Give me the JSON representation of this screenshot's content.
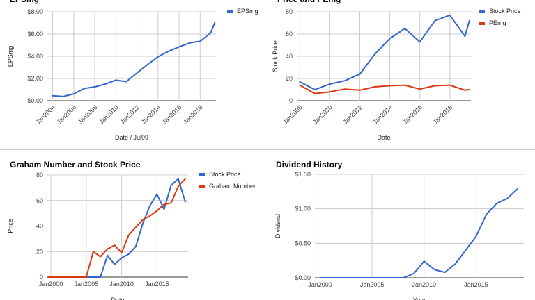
{
  "chart_data": [
    {
      "id": "eps",
      "type": "line",
      "title": "EPSmg",
      "xlabel": "Date / Jul99",
      "ylabel": "EPSmg",
      "x_ticks": [
        "Jan2004",
        "Jan2006",
        "Jan2008",
        "Jan2010",
        "Jan2012",
        "Jan2014",
        "Jan2016",
        "Jan2018"
      ],
      "y_ticks": [
        "$0.00",
        "$2.00",
        "$4.00",
        "$6.00",
        "$8.00"
      ],
      "x_range": [
        2003.5,
        2019.5
      ],
      "ylim": [
        0,
        8
      ],
      "grid": true,
      "legend_position": "right",
      "series": [
        {
          "name": "EPSmg",
          "color": "#3366cc",
          "points": [
            [
              2004,
              0.45
            ],
            [
              2005,
              0.38
            ],
            [
              2006,
              0.62
            ],
            [
              2007,
              1.1
            ],
            [
              2008,
              1.25
            ],
            [
              2009,
              1.5
            ],
            [
              2010,
              1.85
            ],
            [
              2011,
              1.72
            ],
            [
              2012,
              2.5
            ],
            [
              2013,
              3.25
            ],
            [
              2014,
              3.95
            ],
            [
              2015,
              4.45
            ],
            [
              2016,
              4.85
            ],
            [
              2017,
              5.2
            ],
            [
              2018,
              5.35
            ],
            [
              2019,
              6.1
            ],
            [
              2019.4,
              7.05
            ]
          ]
        }
      ]
    },
    {
      "id": "price-pe",
      "type": "line",
      "title": "Price and PEmg",
      "xlabel": "Date",
      "ylabel": "Stock Price",
      "x_ticks": [
        "Jan2008",
        "Jan2010",
        "Jan2012",
        "Jan2014",
        "Jan2016",
        "Jan2018"
      ],
      "y_ticks": [
        "0",
        "20",
        "40",
        "60",
        "80"
      ],
      "x_range": [
        2007.8,
        2019.4
      ],
      "ylim": [
        0,
        80
      ],
      "grid": true,
      "legend_position": "right",
      "series": [
        {
          "name": "Stock Price",
          "color": "#3366cc",
          "points": [
            [
              2008,
              17
            ],
            [
              2009,
              10
            ],
            [
              2010,
              15
            ],
            [
              2011,
              18
            ],
            [
              2012,
              24
            ],
            [
              2013,
              42
            ],
            [
              2014,
              56
            ],
            [
              2015,
              65
            ],
            [
              2016,
              53
            ],
            [
              2017,
              72
            ],
            [
              2018,
              77
            ],
            [
              2019,
              58
            ],
            [
              2019.3,
              72
            ]
          ]
        },
        {
          "name": "PEmg",
          "color": "#dc3912",
          "points": [
            [
              2008,
              14
            ],
            [
              2009,
              6.5
            ],
            [
              2010,
              8
            ],
            [
              2011,
              10.5
            ],
            [
              2012,
              9.5
            ],
            [
              2013,
              12.5
            ],
            [
              2014,
              13.5
            ],
            [
              2015,
              14
            ],
            [
              2016,
              10.5
            ],
            [
              2017,
              13.5
            ],
            [
              2018,
              14
            ],
            [
              2019,
              9.5
            ],
            [
              2019.3,
              10
            ]
          ]
        }
      ]
    },
    {
      "id": "graham",
      "type": "line",
      "title": "Graham Number and Stock Price",
      "xlabel": "Date",
      "ylabel": "Price",
      "x_ticks": [
        "Jan2000",
        "Jan2005",
        "Jan2010",
        "Jan2015"
      ],
      "y_ticks": [
        "0",
        "20",
        "40",
        "60",
        "80"
      ],
      "x_range": [
        1999.5,
        2019.4
      ],
      "ylim": [
        0,
        80
      ],
      "grid": true,
      "legend_position": "right",
      "series": [
        {
          "name": "Stock Price",
          "color": "#3366cc",
          "points": [
            [
              1999.6,
              0
            ],
            [
              2007,
              0
            ],
            [
              2008,
              17
            ],
            [
              2009,
              10
            ],
            [
              2010,
              15
            ],
            [
              2011,
              18
            ],
            [
              2012,
              24
            ],
            [
              2013,
              42
            ],
            [
              2014,
              56
            ],
            [
              2015,
              65
            ],
            [
              2016,
              53
            ],
            [
              2017,
              72
            ],
            [
              2018,
              77
            ],
            [
              2019,
              59
            ]
          ]
        },
        {
          "name": "Graham Number",
          "color": "#dc3912",
          "points": [
            [
              1999.6,
              0
            ],
            [
              2005,
              0
            ],
            [
              2006,
              20
            ],
            [
              2007,
              16
            ],
            [
              2008,
              22
            ],
            [
              2009,
              25
            ],
            [
              2010,
              19
            ],
            [
              2011,
              33
            ],
            [
              2012,
              39
            ],
            [
              2013,
              45
            ],
            [
              2014,
              48
            ],
            [
              2015,
              52
            ],
            [
              2016,
              57
            ],
            [
              2017,
              58
            ],
            [
              2018,
              71
            ],
            [
              2019,
              77
            ]
          ]
        }
      ]
    },
    {
      "id": "dividend",
      "type": "line",
      "title": "Dividend History",
      "xlabel": "Year",
      "ylabel": "Dividend",
      "x_ticks": [
        "Jan2000",
        "Jan2005",
        "Jan2010",
        "Jan2015"
      ],
      "y_ticks": [
        "$0.00",
        "$0.50",
        "$1.00",
        "$1.50"
      ],
      "x_range": [
        1999.5,
        2019.6
      ],
      "ylim": [
        0,
        1.5
      ],
      "grid": true,
      "legend_position": "none",
      "series": [
        {
          "name": "Dividend",
          "color": "#3366cc",
          "points": [
            [
              2000,
              0
            ],
            [
              2008,
              0
            ],
            [
              2009,
              0.06
            ],
            [
              2010,
              0.24
            ],
            [
              2011,
              0.12
            ],
            [
              2012,
              0.08
            ],
            [
              2013,
              0.2
            ],
            [
              2014,
              0.4
            ],
            [
              2015,
              0.6
            ],
            [
              2016,
              0.92
            ],
            [
              2017,
              1.08
            ],
            [
              2018,
              1.15
            ],
            [
              2019,
              1.29
            ]
          ]
        }
      ]
    }
  ]
}
